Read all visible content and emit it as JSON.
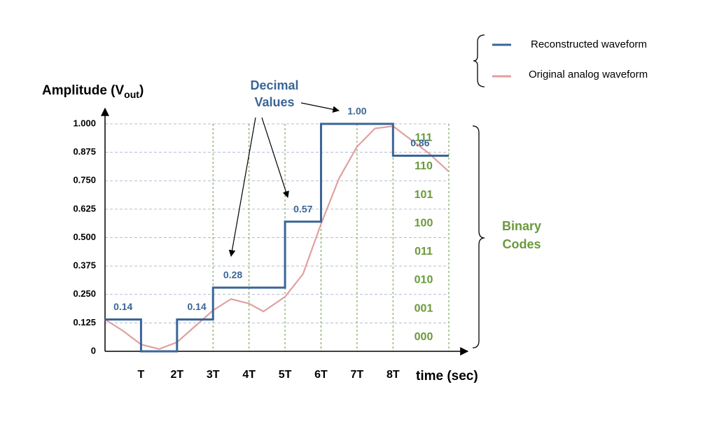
{
  "chart_data": {
    "type": "step",
    "y_label_parts": [
      "Amplitude (V",
      "out",
      ")"
    ],
    "x_label": "time (sec)",
    "annotation_decimal": [
      "Decimal",
      "Values"
    ],
    "annotation_binary": [
      "Binary",
      "Codes"
    ],
    "xlim": [
      0,
      9.55
    ],
    "ylim": [
      0,
      1
    ],
    "xticks": [
      {
        "value": 1,
        "label": "T"
      },
      {
        "value": 2,
        "label": "2T"
      },
      {
        "value": 3,
        "label": "3T"
      },
      {
        "value": 4,
        "label": "4T"
      },
      {
        "value": 5,
        "label": "5T"
      },
      {
        "value": 6,
        "label": "6T"
      },
      {
        "value": 7,
        "label": "7T"
      },
      {
        "value": 8,
        "label": "8T"
      }
    ],
    "yticks": [
      0,
      0.125,
      {
        "value": 0.25,
        "label": "0.250"
      },
      0.375,
      {
        "value": 0.5,
        "label": "0.500"
      },
      0.625,
      {
        "value": 0.75,
        "label": "0.750"
      },
      0.875,
      {
        "value": 1,
        "label": "1.000"
      }
    ],
    "sample_lines": [
      3,
      4,
      5,
      6,
      7,
      8,
      9.55
    ],
    "binary_codes": [
      "000",
      "001",
      "010",
      "011",
      "100",
      "101",
      "110",
      "111"
    ],
    "grid": true,
    "series": [
      {
        "name": "Reconstructed waveform",
        "color": "#3b6596",
        "step": true,
        "x": [
          0,
          1,
          2,
          3,
          5,
          6,
          8
        ],
        "values": [
          0.14,
          0,
          0.14,
          0.28,
          0.57,
          1,
          0.86
        ],
        "value_labels": [
          "0.14",
          null,
          "0.14",
          "0.28",
          "0.57",
          "1.00",
          "0.86"
        ]
      },
      {
        "name": "Original analog waveform",
        "color": "#e0a0a0",
        "step": false,
        "x": [
          0,
          0.5,
          1,
          1.5,
          2,
          2.5,
          3,
          3.5,
          4,
          4.4,
          5,
          5.5,
          6,
          6.5,
          7,
          7.5,
          8,
          8.5,
          9,
          9.55
        ],
        "values": [
          0.14,
          0.09,
          0.03,
          0.01,
          0.04,
          0.11,
          0.18,
          0.23,
          0.21,
          0.175,
          0.24,
          0.34,
          0.56,
          0.76,
          0.9,
          0.98,
          0.99,
          0.93,
          0.87,
          0.79
        ]
      }
    ]
  }
}
